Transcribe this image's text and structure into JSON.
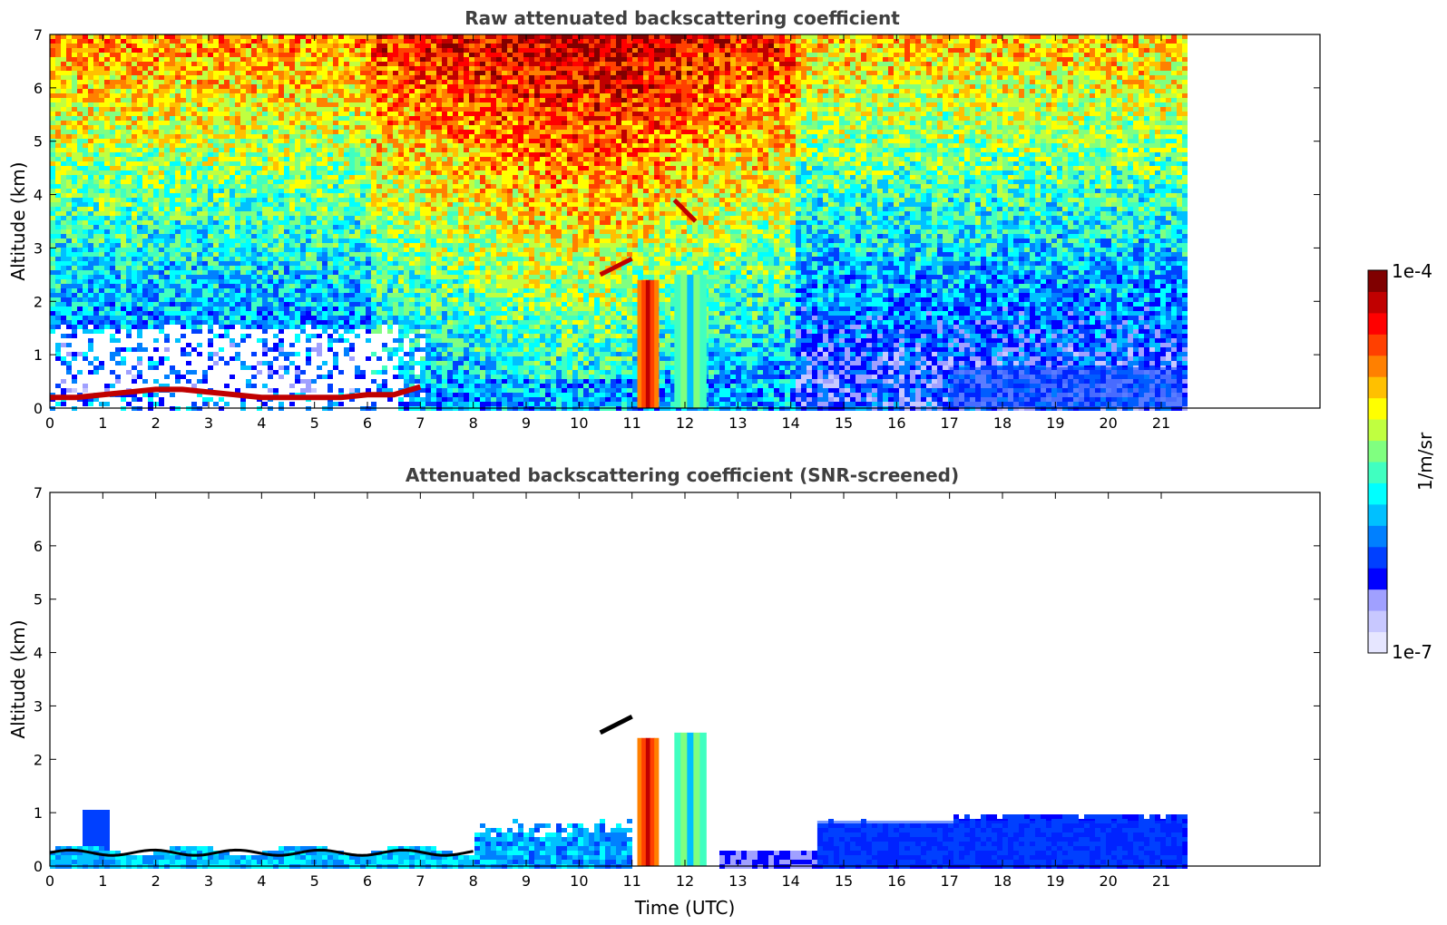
{
  "chart_data": [
    {
      "type": "heatmap",
      "title": "Raw attenuated backscattering coefficient",
      "xlabel": "",
      "ylabel": "Altitude (km)",
      "xlim": [
        0,
        24
      ],
      "ylim": [
        0,
        7
      ],
      "xticks": [
        0,
        1,
        2,
        3,
        4,
        5,
        6,
        7,
        8,
        9,
        10,
        11,
        12,
        13,
        14,
        15,
        16,
        17,
        18,
        19,
        20,
        21
      ],
      "yticks": [
        0,
        1,
        2,
        3,
        4,
        5,
        6,
        7
      ],
      "data_extent_hours": [
        0,
        21.4
      ],
      "features": [
        {
          "kind": "boundary-layer-top",
          "x": [
            0,
            0.5,
            1,
            2,
            2.5,
            3,
            4,
            5,
            5.5,
            6,
            6.5,
            7
          ],
          "y": [
            0.2,
            0.2,
            0.25,
            0.35,
            0.35,
            0.3,
            0.2,
            0.2,
            0.2,
            0.25,
            0.25,
            0.4
          ]
        },
        {
          "kind": "elevated-layer",
          "x": [
            10.4,
            11.0
          ],
          "y": [
            2.5,
            2.8
          ]
        },
        {
          "kind": "precipitation-column",
          "x": [
            11.1,
            11.5
          ],
          "y": [
            0,
            2.4
          ]
        },
        {
          "kind": "precipitation-column",
          "x": [
            11.8,
            12.4
          ],
          "y": [
            0,
            2.5
          ]
        },
        {
          "kind": "cloud-patch",
          "x": [
            11.8,
            12.2
          ],
          "y": [
            3.5,
            3.9
          ]
        },
        {
          "kind": "aerosol-layer",
          "x": [
            17,
            21.4
          ],
          "y": [
            0,
            0.9
          ]
        }
      ]
    },
    {
      "type": "heatmap",
      "title": "Attenuated backscattering coefficient (SNR-screened)",
      "xlabel": "Time (UTC)",
      "ylabel": "Altitude (km)",
      "xlim": [
        0,
        24
      ],
      "ylim": [
        0,
        7
      ],
      "xticks": [
        0,
        1,
        2,
        3,
        4,
        5,
        6,
        7,
        8,
        9,
        10,
        11,
        12,
        13,
        14,
        15,
        16,
        17,
        18,
        19,
        20,
        21
      ],
      "yticks": [
        0,
        1,
        2,
        3,
        4,
        5,
        6,
        7
      ],
      "data_extent_hours": [
        0,
        21.4
      ],
      "features": [
        {
          "kind": "boundary-layer",
          "x": [
            0,
            8
          ],
          "y": [
            0,
            0.4
          ]
        },
        {
          "kind": "elevated-layer",
          "x": [
            10.4,
            11.0
          ],
          "y": [
            2.5,
            2.8
          ]
        },
        {
          "kind": "precipitation-column",
          "x": [
            11.1,
            11.5
          ],
          "y": [
            0,
            2.4
          ]
        },
        {
          "kind": "precipitation-column",
          "x": [
            11.8,
            12.4
          ],
          "y": [
            0,
            2.5
          ]
        },
        {
          "kind": "aerosol-layer",
          "x": [
            14.5,
            21.4
          ],
          "y": [
            0,
            1.0
          ]
        }
      ]
    }
  ],
  "colorbar": {
    "max_label": "1e-4",
    "min_label": "1e-7",
    "unit_label": "1/m/sr",
    "scale": "log",
    "colors": [
      "#e6e6ff",
      "#c8c8ff",
      "#a0a0ff",
      "#0000ff",
      "#0040ff",
      "#0080ff",
      "#00c0ff",
      "#00ffff",
      "#40ffc0",
      "#80ff80",
      "#c0ff40",
      "#ffff00",
      "#ffc000",
      "#ff8000",
      "#ff4000",
      "#ff0000",
      "#c00000",
      "#800000"
    ]
  }
}
